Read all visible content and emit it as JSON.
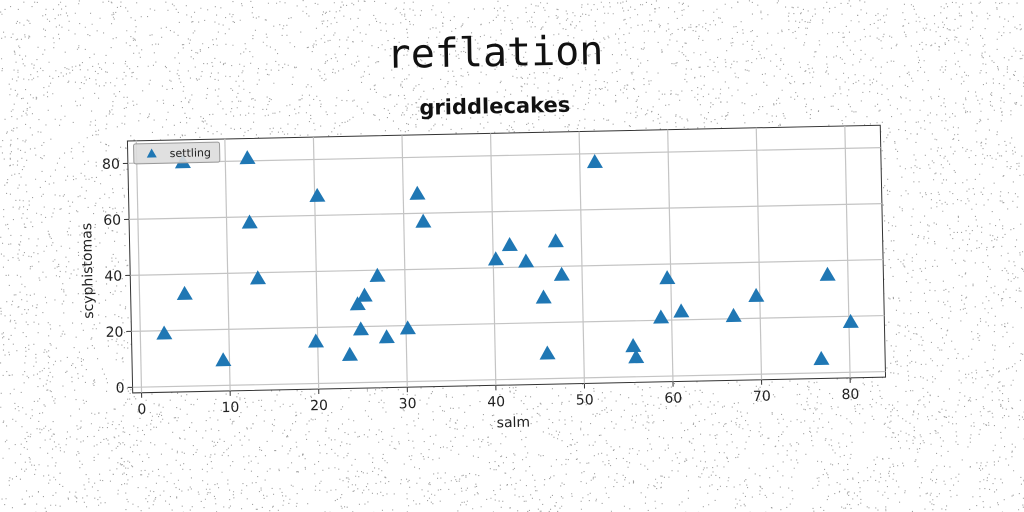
{
  "page": {
    "suptitle": "reflation"
  },
  "chart_data": {
    "type": "scatter",
    "title": "griddlecakes",
    "xlabel": "salm",
    "ylabel": "scyphistomas",
    "xlim": [
      -1,
      84
    ],
    "ylim": [
      -2,
      88
    ],
    "xticks": [
      0,
      10,
      20,
      30,
      40,
      50,
      60,
      70,
      80
    ],
    "yticks": [
      0,
      20,
      40,
      60,
      80
    ],
    "grid": true,
    "legend_position": "top-left",
    "marker": "triangle",
    "color": "#1f77b4",
    "series": [
      {
        "name": "settling",
        "points": [
          [
            2.7,
            19
          ],
          [
            5.1,
            33
          ],
          [
            5.2,
            80
          ],
          [
            9.3,
            9
          ],
          [
            12.5,
            81
          ],
          [
            12.6,
            58
          ],
          [
            13.4,
            38
          ],
          [
            19.8,
            15
          ],
          [
            20.3,
            67
          ],
          [
            23.6,
            10
          ],
          [
            24.6,
            28
          ],
          [
            24.9,
            19
          ],
          [
            25.4,
            31
          ],
          [
            26.9,
            38
          ],
          [
            27.8,
            16
          ],
          [
            30.2,
            19
          ],
          [
            31.6,
            67
          ],
          [
            32.2,
            57
          ],
          [
            40.3,
            43
          ],
          [
            41.9,
            48
          ],
          [
            43.7,
            42
          ],
          [
            45.6,
            29
          ],
          [
            45.9,
            9
          ],
          [
            47.1,
            49
          ],
          [
            47.7,
            37
          ],
          [
            51.7,
            77
          ],
          [
            55.6,
            11
          ],
          [
            55.9,
            7
          ],
          [
            58.8,
            21
          ],
          [
            59.6,
            35
          ],
          [
            61.1,
            23
          ],
          [
            67.0,
            21
          ],
          [
            69.6,
            28
          ],
          [
            76.8,
            5
          ],
          [
            77.7,
            35
          ],
          [
            80.2,
            18
          ]
        ]
      }
    ]
  }
}
